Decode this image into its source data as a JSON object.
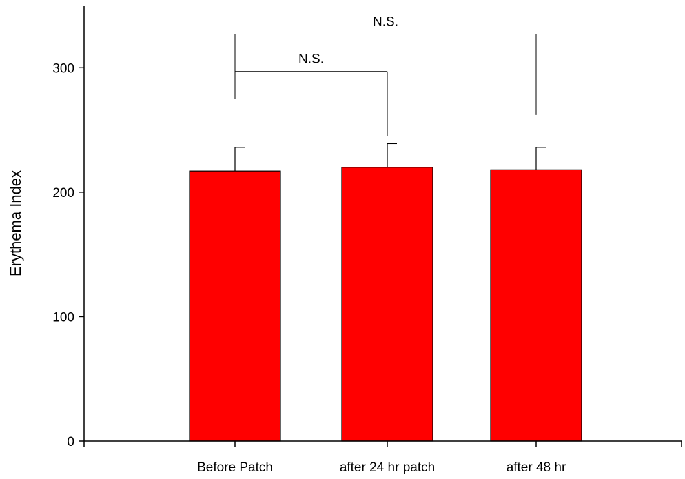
{
  "chart_data": {
    "type": "bar",
    "title": "",
    "xlabel": "",
    "ylabel": "Erythema Index",
    "ylim": [
      0,
      350
    ],
    "yticks": [
      0,
      100,
      200,
      300
    ],
    "grid": false,
    "bar_color": "#ff0000",
    "categories": [
      "Before Patch",
      "after 24 hr patch",
      "after 48 hr"
    ],
    "values": [
      217,
      220,
      218
    ],
    "error_upper": [
      236,
      239,
      236
    ],
    "annotations": [
      {
        "text": "N.S.",
        "from": 0,
        "to": 1,
        "bracket_y": 297,
        "left_drop_to": 275,
        "right_drop_to": 245
      },
      {
        "text": "N.S.",
        "from": 0,
        "to": 2,
        "bracket_y": 327,
        "left_drop_to": 275,
        "right_drop_to": 262
      }
    ]
  }
}
